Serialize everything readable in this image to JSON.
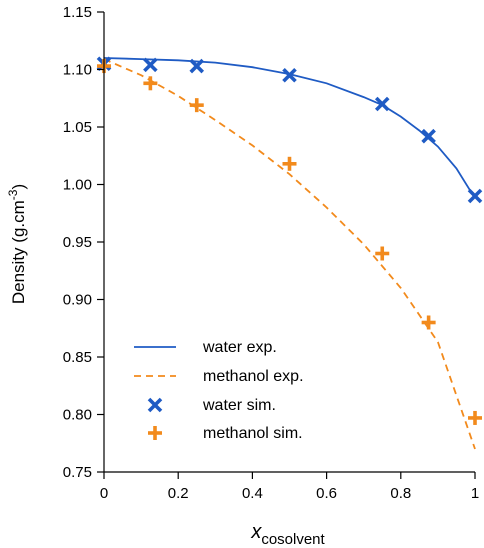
{
  "chart_data": {
    "type": "line",
    "xlabel": "x",
    "xlabel_subscript": "cosolvent",
    "ylabel": "Density (g.cm",
    "ylabel_superscript": "-3",
    "ylabel_suffix": ")",
    "xlim": [
      0,
      1
    ],
    "ylim": [
      0.75,
      1.15
    ],
    "xticks": [
      0,
      0.2,
      0.4,
      0.6,
      0.8,
      1
    ],
    "xtick_labels": [
      "0",
      "0.2",
      "0.4",
      "0.6",
      "0.8",
      "1"
    ],
    "yticks": [
      0.75,
      0.8,
      0.85,
      0.9,
      0.95,
      1.0,
      1.05,
      1.1,
      1.15
    ],
    "ytick_labels": [
      "0.75",
      "0.80",
      "0.85",
      "0.90",
      "0.95",
      "1.00",
      "1.05",
      "1.10",
      "1.15"
    ],
    "grid": false,
    "legend_position": "bottom-left",
    "series": [
      {
        "name": "water exp.",
        "kind": "line",
        "style": "solid",
        "color": "#1f5bc4",
        "x": [
          0,
          0.1,
          0.2,
          0.3,
          0.4,
          0.5,
          0.6,
          0.7,
          0.75,
          0.8,
          0.85,
          0.9,
          0.95,
          1.0
        ],
        "y": [
          1.11,
          1.109,
          1.108,
          1.106,
          1.102,
          1.096,
          1.088,
          1.076,
          1.069,
          1.059,
          1.047,
          1.033,
          1.014,
          0.988
        ]
      },
      {
        "name": "methanol exp.",
        "kind": "line",
        "style": "dashed",
        "color": "#f28a1c",
        "x": [
          0,
          0.1,
          0.2,
          0.3,
          0.4,
          0.5,
          0.6,
          0.7,
          0.8,
          0.9,
          1.0
        ],
        "y": [
          1.109,
          1.095,
          1.077,
          1.056,
          1.034,
          1.009,
          0.98,
          0.948,
          0.91,
          0.863,
          0.77
        ]
      },
      {
        "name": "water sim.",
        "kind": "scatter",
        "marker": "x",
        "color": "#1f5bc4",
        "x": [
          0,
          0.125,
          0.25,
          0.5,
          0.75,
          0.875,
          1.0
        ],
        "y": [
          1.105,
          1.104,
          1.103,
          1.095,
          1.07,
          1.042,
          0.99
        ]
      },
      {
        "name": "methanol sim.",
        "kind": "scatter",
        "marker": "+",
        "color": "#f28a1c",
        "x": [
          0,
          0.125,
          0.25,
          0.5,
          0.75,
          0.875,
          1.0
        ],
        "y": [
          1.103,
          1.088,
          1.069,
          1.018,
          0.94,
          0.88,
          0.797
        ]
      }
    ]
  }
}
